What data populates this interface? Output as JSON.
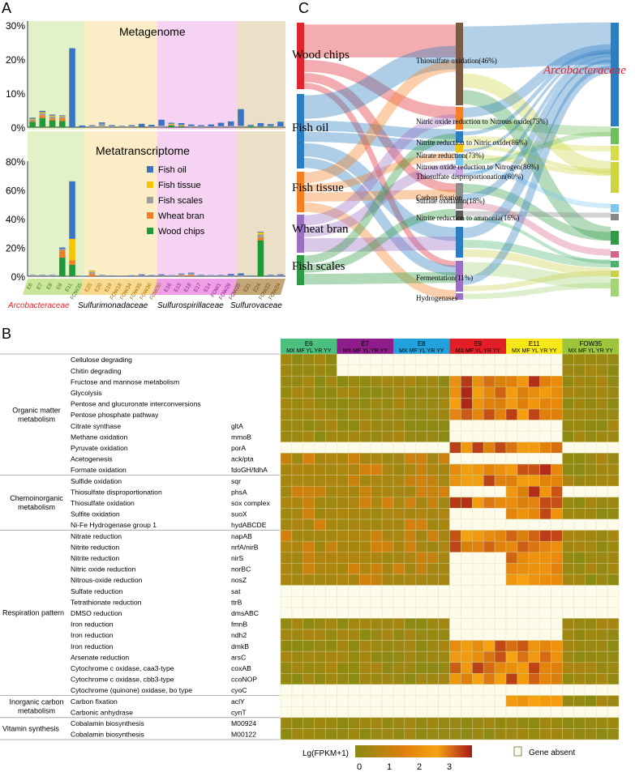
{
  "panel_labels": {
    "a": "A",
    "b": "B",
    "c": "C"
  },
  "colors": {
    "fish_oil": "#3b74c4",
    "fish_tissue": "#f6c400",
    "fish_scales": "#9e9e9e",
    "wheat_bran": "#f07e24",
    "wood_chips": "#1f9a3a",
    "band_green": "#e2f1c8",
    "band_yellow": "#fbedc6",
    "band_pink": "#f7d3f3",
    "band_tan": "#ecdfc8"
  },
  "panel_a": {
    "family_labels": [
      "Arcobacteraceae",
      "Sulfurimonadaceae",
      "Sulfurospirillaceae",
      "Sulfurovaceae"
    ],
    "samples": [
      "E6",
      "E7",
      "E8",
      "E9",
      "E11",
      "FOW35",
      "E25",
      "E20",
      "E19",
      "FOW18",
      "FOW34",
      "FOW35",
      "FOW36",
      "FOW30",
      "E16",
      "E13",
      "E18",
      "E17",
      "E14",
      "FOW1",
      "FOW29",
      "FOW25",
      "E21",
      "E24",
      "FOW22",
      "FOW24"
    ],
    "legend": [
      "Fish oil",
      "Fish tissue",
      "Fish scales",
      "Wheat bran",
      "Wood chips"
    ]
  },
  "panel_b": {
    "groups": [
      "E6",
      "E7",
      "E8",
      "E9",
      "E11",
      "FOW35"
    ],
    "group_colors": [
      "#4cc07e",
      "#8e1c8a",
      "#21a2dc",
      "#e21f26",
      "#f7e718",
      "#9cc53b"
    ],
    "columns": [
      "MX",
      "MF",
      "YL",
      "YR",
      "YY"
    ],
    "categories": [
      "Organic matter metabolism",
      "Chemoinorganic metabolism",
      "Respiration pattern",
      "Inorganic carbon metabolism",
      "Vitamin synthesis"
    ],
    "rows": [
      {
        "pathway": "Cellulose degrading",
        "gene": ""
      },
      {
        "pathway": "Chitin degrading",
        "gene": ""
      },
      {
        "pathway": "Fructose and mannose metabolism",
        "gene": ""
      },
      {
        "pathway": "Glycolysis",
        "gene": ""
      },
      {
        "pathway": "Pentose and glucuronate interconversions",
        "gene": ""
      },
      {
        "pathway": "Pentose phosphate pathway",
        "gene": ""
      },
      {
        "pathway": "Citrate synthase",
        "gene": "gltA"
      },
      {
        "pathway": "Methane oxidation",
        "gene": "mmoB"
      },
      {
        "pathway": "Pyruvate oxidation",
        "gene": "porA"
      },
      {
        "pathway": "Acetogenesis",
        "gene": "ack/pta"
      },
      {
        "pathway": "Formate oxidation",
        "gene": "fdoGH/fdhA"
      },
      {
        "pathway": "Sulfide oxidation",
        "gene": "sqr"
      },
      {
        "pathway": "Thiosulfate disproportionation",
        "gene": "phsA"
      },
      {
        "pathway": "Thiosulfate oxidation",
        "gene": "sox complex"
      },
      {
        "pathway": "Sulfite oxidation",
        "gene": "suoX"
      },
      {
        "pathway": "Ni-Fe Hydrogenase group 1",
        "gene": "hydABCDE"
      },
      {
        "pathway": "Nitrate reduction",
        "gene": "napAB"
      },
      {
        "pathway": "Nitrite reduction",
        "gene": "nrfA/nirB"
      },
      {
        "pathway": "Nitrite reduction",
        "gene": "nirS"
      },
      {
        "pathway": "Nitric oxide reduction",
        "gene": "norBC"
      },
      {
        "pathway": "Nitrous-oxide reduction",
        "gene": "nosZ"
      },
      {
        "pathway": "Sulfate reduction",
        "gene": "sat"
      },
      {
        "pathway": "Tetrathionate reduction",
        "gene": "ttrB"
      },
      {
        "pathway": "DMSO reduction",
        "gene": "dmsABC"
      },
      {
        "pathway": "Iron reduction",
        "gene": "fmnB"
      },
      {
        "pathway": "Iron reduction",
        "gene": "ndh2"
      },
      {
        "pathway": "Iron reduction",
        "gene": "dmkB"
      },
      {
        "pathway": "Arsenate reduction",
        "gene": "arsC"
      },
      {
        "pathway": "Cytochrome c oxidase, caa3-type",
        "gene": "coxAB"
      },
      {
        "pathway": "Cytochrome c oxidase, cbb3-type",
        "gene": "ccoNOP"
      },
      {
        "pathway": "Cytochrome (quinone) oxidase, bo type",
        "gene": "cyoC"
      },
      {
        "pathway": "Carbon fixation",
        "gene": "aclY"
      },
      {
        "pathway": "Carbonic anhydrase",
        "gene": "cynT"
      },
      {
        "pathway": "Cobalamin biosynthesis",
        "gene": "M00924"
      },
      {
        "pathway": "Cobalamin biosynthesis",
        "gene": "M00122"
      }
    ],
    "legend_title": "Lg(FPKM+1)",
    "legend_ticks": [
      "0",
      "1",
      "2",
      "3"
    ],
    "absent_label": "Gene absent",
    "scale_colors": [
      "#8a8a14",
      "#e07f0c",
      "#f7a210",
      "#a41919"
    ]
  },
  "panel_c": {
    "substrates": [
      "Wood chips",
      "Fish oil",
      "Fish tissue",
      "Wheat bran",
      "Fish scales"
    ],
    "substrate_colors": [
      "#e0262c",
      "#2b7ec1",
      "#f58024",
      "#9b6fc2",
      "#2f9b45"
    ],
    "functions": [
      "Thiosulfate oxidation(46%)",
      "Nitric oxide reduction to Nitrous oxide(75%)",
      "Nitrite reduction to Nitric oxide(86%)",
      "Nitrate reduction(73%)",
      "Nitrous oxide reduction to Nitrogen(86%)",
      "Thiosulfate disproportionation(60%)",
      "Sulfide oxidation(18%)",
      "Carbon fixation",
      "Nitrite reduction to ammonia(16%)",
      "Fermentation(11%)",
      "Hydrogenases"
    ],
    "function_colors": [
      "#7a5c46",
      "#f58024",
      "#2b7ec1",
      "#f6c000",
      "#7cc6f0",
      "#c8a6e0",
      "#8c8c8c",
      "#5b5b5b",
      "#2b7ec1",
      "#9b6fc2",
      "#9b6fc2"
    ],
    "family_label": "Arcobacteraceae",
    "right_colors": [
      "#2b7ec1",
      "#6ec05a",
      "#d5dd4a",
      "#cdd63f",
      "#7cc6f0",
      "#888888",
      "#2f9b45",
      "#d56585",
      "#4bb36b",
      "#c9d14c",
      "#a3d477"
    ]
  },
  "chart_data": [
    {
      "type": "bar",
      "title": "Metagenome",
      "categories": [
        "E6",
        "E7",
        "E8",
        "E9",
        "E11",
        "FOW35",
        "E25",
        "E20",
        "E19",
        "FOW18",
        "FOW34",
        "FOW35",
        "FOW36",
        "FOW30",
        "E16",
        "E13",
        "E18",
        "E17",
        "E14",
        "FOW1",
        "FOW29",
        "FOW25",
        "E21",
        "E24",
        "FOW22",
        "FOW24"
      ],
      "ylim": [
        0,
        30
      ],
      "yticks": [
        "30%",
        "20%",
        "10%",
        "0%"
      ],
      "stacked": true,
      "series": [
        {
          "name": "Wood chips",
          "values": [
            1.6,
            2.7,
            2.0,
            1.8,
            0,
            0,
            0,
            0,
            0,
            0,
            0,
            0,
            0,
            0,
            0.5,
            0.3,
            0,
            0,
            0,
            0,
            0,
            0,
            0.3,
            0.2,
            0.2,
            0
          ]
        },
        {
          "name": "Wheat bran",
          "values": [
            0.3,
            0.8,
            0.6,
            0.8,
            0,
            0,
            0,
            0,
            0,
            0,
            0,
            0,
            0,
            0,
            0.1,
            0.1,
            0,
            0,
            0,
            0,
            0,
            0,
            0,
            0,
            0,
            0
          ]
        },
        {
          "name": "Fish scales",
          "values": [
            0.4,
            0.6,
            0.5,
            0.5,
            0,
            0,
            0.4,
            1.0,
            0.3,
            0.2,
            0.3,
            0,
            0.2,
            0.5,
            0.2,
            0.2,
            0.4,
            0.3,
            0.2,
            0.3,
            0.4,
            0.5,
            0.1,
            0.1,
            0.2,
            0.2
          ]
        },
        {
          "name": "Fish tissue",
          "values": [
            0.2,
            0.3,
            0.3,
            0.2,
            0,
            0,
            0,
            0,
            0,
            0,
            0,
            0,
            0,
            0,
            0.2,
            0.1,
            0,
            0,
            0,
            0,
            0,
            0,
            0,
            0,
            0,
            0
          ]
        },
        {
          "name": "Fish oil",
          "values": [
            0.3,
            0.4,
            0.3,
            0.2,
            23.2,
            0.5,
            0.2,
            0.4,
            0.3,
            0.2,
            0.3,
            1.0,
            0.5,
            1.7,
            0.3,
            0.5,
            0.4,
            0.3,
            0.6,
            1.0,
            1.3,
            4.8,
            0.3,
            0.9,
            0.5,
            1.4
          ]
        }
      ]
    },
    {
      "type": "bar",
      "title": "Metatranscriptome",
      "categories": [
        "E6",
        "E7",
        "E8",
        "E9",
        "E11",
        "FOW35",
        "E25",
        "E20",
        "E19",
        "FOW18",
        "FOW34",
        "FOW35",
        "FOW36",
        "FOW30",
        "E16",
        "E13",
        "E18",
        "E17",
        "E14",
        "FOW1",
        "FOW29",
        "FOW25",
        "E21",
        "E24",
        "FOW22",
        "FOW24"
      ],
      "ylim": [
        0,
        80
      ],
      "yticks": [
        "80%",
        "60%",
        "40%",
        "20%",
        "0%"
      ],
      "stacked": true,
      "series": [
        {
          "name": "Wood chips",
          "values": [
            0,
            0,
            0,
            13,
            8,
            0,
            0,
            0,
            0,
            0,
            0,
            0,
            0,
            0,
            0,
            0,
            0,
            0,
            0,
            0,
            0,
            0,
            0,
            25,
            0,
            0
          ]
        },
        {
          "name": "Wheat bran",
          "values": [
            0,
            0,
            0,
            5,
            3,
            0,
            1.5,
            0,
            0,
            0,
            0,
            0,
            0,
            0,
            0,
            0.5,
            0.8,
            0,
            0,
            0,
            0,
            0,
            0,
            2,
            0,
            0
          ]
        },
        {
          "name": "Fish scales",
          "values": [
            0.5,
            0.5,
            0.5,
            1,
            0,
            0,
            1.5,
            0.6,
            0.3,
            0.3,
            0.3,
            0.5,
            0.3,
            0.6,
            0.5,
            1,
            1.2,
            0.5,
            0.4,
            0.4,
            0.4,
            0.6,
            0.3,
            2,
            0.4,
            0.4
          ]
        },
        {
          "name": "Fish tissue",
          "values": [
            0,
            0,
            0,
            0,
            15,
            0,
            0.8,
            0,
            0,
            0,
            0,
            0,
            0,
            0,
            0,
            0,
            0,
            0,
            0,
            0,
            0,
            0,
            0,
            1.5,
            0,
            0
          ]
        },
        {
          "name": "Fish oil",
          "values": [
            0.4,
            0.4,
            0.4,
            1,
            40,
            0.3,
            0.2,
            0.3,
            0.3,
            0.2,
            0.4,
            0.8,
            0.5,
            0.7,
            0.3,
            0.4,
            0.5,
            0.5,
            0.4,
            0.5,
            1.2,
            1.4,
            0.3,
            0.5,
            0.6,
            0.9
          ]
        }
      ]
    }
  ]
}
